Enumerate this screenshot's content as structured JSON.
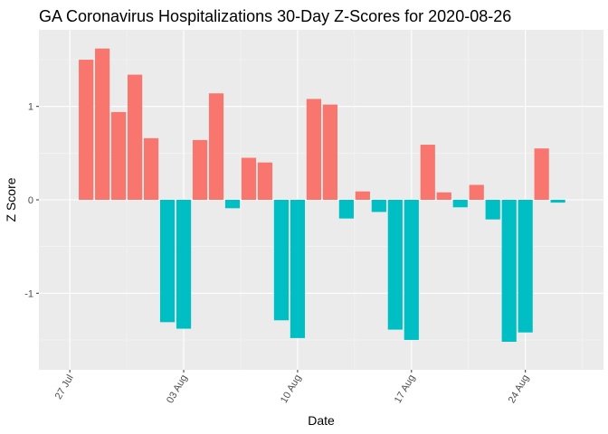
{
  "chart_data": {
    "type": "bar",
    "title": "GA Coronavirus Hospitalizations 30-Day Z-Scores for 2020-08-26",
    "xlabel": "Date",
    "ylabel": "Z Score",
    "x_start": "2020-07-28",
    "x_range_days": [
      -1.9,
      32.8
    ],
    "ylim": [
      -1.82,
      1.82
    ],
    "yticks": [
      -1,
      0,
      1
    ],
    "ytick_labels": [
      "-1",
      "0",
      "1"
    ],
    "xticks": [
      {
        "day": 0,
        "label": "27 Jul"
      },
      {
        "day": 7,
        "label": "03 Aug"
      },
      {
        "day": 14,
        "label": "10 Aug"
      },
      {
        "day": 21,
        "label": "17 Aug"
      },
      {
        "day": 28,
        "label": "24 Aug"
      }
    ],
    "dates": [
      "2020-07-28",
      "2020-07-29",
      "2020-07-30",
      "2020-07-31",
      "2020-08-01",
      "2020-08-02",
      "2020-08-03",
      "2020-08-04",
      "2020-08-05",
      "2020-08-06",
      "2020-08-07",
      "2020-08-08",
      "2020-08-09",
      "2020-08-10",
      "2020-08-11",
      "2020-08-12",
      "2020-08-13",
      "2020-08-14",
      "2020-08-15",
      "2020-08-16",
      "2020-08-17",
      "2020-08-18",
      "2020-08-19",
      "2020-08-20",
      "2020-08-21",
      "2020-08-22",
      "2020-08-23",
      "2020-08-24",
      "2020-08-25",
      "2020-08-26"
    ],
    "values": [
      1.5,
      1.62,
      0.94,
      1.34,
      0.66,
      -1.31,
      -1.38,
      0.64,
      1.14,
      -0.09,
      0.45,
      0.4,
      -1.29,
      -1.48,
      1.08,
      1.02,
      -0.2,
      0.09,
      -0.13,
      -1.39,
      -1.5,
      0.59,
      0.08,
      -0.08,
      0.16,
      -0.21,
      -1.52,
      -1.42,
      0.55,
      -0.03
    ],
    "series_colors": {
      "positive": "#F8766D",
      "negative": "#00BFC4"
    },
    "legend": "none",
    "grid": true
  },
  "style": {
    "panel_bg": "#EBEBEB",
    "grid_major": "#FFFFFF",
    "grid_minor": "#F5F5F5",
    "tick_color": "#333333"
  }
}
